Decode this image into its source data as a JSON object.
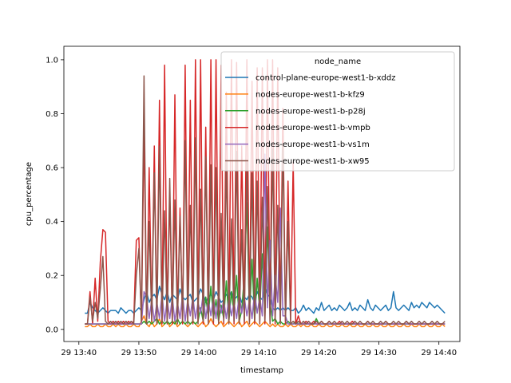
{
  "chart_data": {
    "type": "line",
    "xlabel": "timestamp",
    "ylabel": "cpu_percentage",
    "legend_title": "node_name",
    "legend_position": "top-right",
    "grid": false,
    "x_domain": [
      "29 13:41",
      "29 14:41"
    ],
    "xlim": [
      "29 13:37:30",
      "29 14:43:30"
    ],
    "ylim": [
      -0.045,
      1.05
    ],
    "x_ticks": [
      "29 13:40",
      "29 13:50",
      "29 14:00",
      "29 14:10",
      "29 14:20",
      "29 14:30",
      "29 14:40"
    ],
    "y_ticks": [
      0.0,
      0.2,
      0.4,
      0.6,
      0.8,
      1.0
    ],
    "y_tick_labels": [
      "0.0",
      "0.2",
      "0.4",
      "0.6",
      "0.8",
      "1.0"
    ],
    "series": [
      {
        "name": "control-plane-europe-west1-b-xddz",
        "color": "#1f77b4",
        "y": [
          0.06,
          0.06,
          0.1,
          0.08,
          0.07,
          0.06,
          0.07,
          0.08,
          0.07,
          0.06,
          0.07,
          0.07,
          0.07,
          0.06,
          0.08,
          0.07,
          0.06,
          0.07,
          0.07,
          0.06,
          0.07,
          0.08,
          0.07,
          0.11,
          0.14,
          0.1,
          0.12,
          0.13,
          0.11,
          0.16,
          0.13,
          0.11,
          0.14,
          0.1,
          0.13,
          0.12,
          0.11,
          0.15,
          0.12,
          0.11,
          0.12,
          0.13,
          0.1,
          0.11,
          0.12,
          0.15,
          0.13,
          0.1,
          0.12,
          0.13,
          0.11,
          0.14,
          0.12,
          0.1,
          0.11,
          0.13,
          0.12,
          0.14,
          0.11,
          0.12,
          0.13,
          0.1,
          0.12,
          0.11,
          0.13,
          0.12,
          0.1,
          0.14,
          0.12,
          0.11,
          0.16,
          0.13,
          0.12,
          0.08,
          0.07,
          0.08,
          0.07,
          0.08,
          0.07,
          0.08,
          0.07,
          0.07,
          0.08,
          0.06,
          0.07,
          0.09,
          0.07,
          0.08,
          0.07,
          0.06,
          0.08,
          0.07,
          0.1,
          0.07,
          0.08,
          0.09,
          0.07,
          0.08,
          0.07,
          0.09,
          0.08,
          0.07,
          0.08,
          0.1,
          0.07,
          0.08,
          0.07,
          0.09,
          0.08,
          0.07,
          0.11,
          0.08,
          0.07,
          0.09,
          0.08,
          0.07,
          0.08,
          0.09,
          0.07,
          0.08,
          0.14,
          0.08,
          0.07,
          0.08,
          0.09,
          0.08,
          0.07,
          0.1,
          0.08,
          0.09,
          0.08,
          0.1,
          0.09,
          0.08,
          0.1,
          0.09,
          0.08,
          0.09,
          0.08,
          0.07,
          0.06
        ]
      },
      {
        "name": "nodes-europe-west1-b-kfz9",
        "color": "#ff7f0e",
        "y": [
          0.01,
          0.01,
          0.02,
          0.01,
          0.01,
          0.02,
          0.01,
          0.01,
          0.02,
          0.01,
          0.01,
          0.02,
          0.01,
          0.02,
          0.01,
          0.01,
          0.02,
          0.01,
          0.01,
          0.02,
          0.01,
          0.01,
          0.03,
          0.05,
          0.02,
          0.01,
          0.03,
          0.01,
          0.02,
          0.04,
          0.01,
          0.02,
          0.03,
          0.01,
          0.02,
          0.03,
          0.01,
          0.02,
          0.03,
          0.02,
          0.01,
          0.02,
          0.03,
          0.02,
          0.01,
          0.02,
          0.03,
          0.01,
          0.02,
          0.04,
          0.02,
          0.01,
          0.02,
          0.03,
          0.01,
          0.02,
          0.03,
          0.02,
          0.01,
          0.02,
          0.03,
          0.01,
          0.02,
          0.03,
          0.01,
          0.02,
          0.03,
          0.02,
          0.01,
          0.02,
          0.03,
          0.02,
          0.01,
          0.02,
          0.01,
          0.02,
          0.01,
          0.01,
          0.02,
          0.01,
          0.02,
          0.01,
          0.01,
          0.02,
          0.01,
          0.02,
          0.01,
          0.01,
          0.02,
          0.01,
          0.01,
          0.02,
          0.01,
          0.01,
          0.02,
          0.01,
          0.01,
          0.02,
          0.01,
          0.01,
          0.02,
          0.01,
          0.01,
          0.02,
          0.01,
          0.01,
          0.02,
          0.01,
          0.01,
          0.02,
          0.01,
          0.01,
          0.02,
          0.01,
          0.01,
          0.02,
          0.01,
          0.01,
          0.02,
          0.01,
          0.01,
          0.02,
          0.01,
          0.01,
          0.02,
          0.01,
          0.01,
          0.02,
          0.01,
          0.01,
          0.02,
          0.01,
          0.01,
          0.02,
          0.01,
          0.01,
          0.02,
          0.01,
          0.01,
          0.02,
          0.01
        ]
      },
      {
        "name": "nodes-europe-west1-b-p28j",
        "color": "#2ca02c",
        "y": [
          0.02,
          0.02,
          0.02,
          0.02,
          0.02,
          0.02,
          0.02,
          0.02,
          0.02,
          0.02,
          0.02,
          0.02,
          0.02,
          0.02,
          0.02,
          0.02,
          0.02,
          0.02,
          0.02,
          0.02,
          0.02,
          0.02,
          0.02,
          0.03,
          0.02,
          0.03,
          0.02,
          0.03,
          0.04,
          0.02,
          0.03,
          0.02,
          0.03,
          0.02,
          0.03,
          0.02,
          0.04,
          0.02,
          0.03,
          0.02,
          0.03,
          0.02,
          0.03,
          0.02,
          0.03,
          0.08,
          0.03,
          0.12,
          0.05,
          0.16,
          0.04,
          0.11,
          0.03,
          0.09,
          0.04,
          0.18,
          0.03,
          0.14,
          0.06,
          0.2,
          0.03,
          0.07,
          0.2,
          0.47,
          0.05,
          0.26,
          0.03,
          0.19,
          0.07,
          0.28,
          0.05,
          0.38,
          0.1,
          0.03,
          0.04,
          0.02,
          0.03,
          0.02,
          0.02,
          0.03,
          0.02,
          0.02,
          0.03,
          0.02,
          0.02,
          0.02,
          0.02,
          0.02,
          0.02,
          0.02,
          0.04,
          0.02,
          0.02,
          0.02,
          0.02,
          0.02,
          0.02,
          0.02,
          0.02,
          0.02,
          0.02,
          0.02,
          0.02,
          0.02,
          0.02,
          0.02,
          0.02,
          0.02,
          0.02,
          0.02,
          0.02,
          0.02,
          0.02,
          0.02,
          0.02,
          0.02,
          0.02,
          0.02,
          0.02,
          0.02,
          0.02,
          0.02,
          0.02,
          0.02,
          0.02,
          0.02,
          0.02,
          0.02,
          0.02,
          0.02,
          0.02,
          0.02,
          0.02,
          0.02,
          0.02,
          0.02,
          0.02,
          0.02,
          0.02,
          0.02,
          0.02
        ]
      },
      {
        "name": "nodes-europe-west1-b-vmpb",
        "color": "#d62728",
        "y": [
          0.02,
          0.02,
          0.14,
          0.02,
          0.19,
          0.03,
          0.25,
          0.37,
          0.36,
          0.03,
          0.02,
          0.03,
          0.02,
          0.03,
          0.02,
          0.03,
          0.02,
          0.03,
          0.02,
          0.03,
          0.33,
          0.34,
          0.02,
          0.75,
          0.02,
          0.6,
          0.03,
          0.68,
          0.02,
          0.85,
          0.02,
          0.98,
          0.03,
          0.5,
          0.02,
          0.87,
          0.03,
          0.45,
          0.02,
          0.98,
          0.03,
          0.85,
          0.02,
          1.0,
          0.03,
          1.0,
          0.02,
          0.75,
          0.03,
          1.0,
          0.02,
          1.0,
          0.03,
          0.98,
          0.02,
          0.88,
          0.03,
          1.0,
          0.02,
          0.99,
          0.03,
          0.68,
          0.02,
          1.0,
          0.03,
          0.92,
          0.02,
          0.97,
          0.03,
          0.97,
          0.02,
          1.0,
          0.03,
          1.0,
          0.02,
          0.97,
          0.03,
          0.82,
          0.02,
          0.55,
          0.03,
          0.62,
          0.02,
          0.05,
          0.02,
          0.02,
          0.03,
          0.02,
          0.02,
          0.03,
          0.02,
          0.02,
          0.03,
          0.02,
          0.02,
          0.03,
          0.02,
          0.02,
          0.02,
          0.03,
          0.02,
          0.02,
          0.02,
          0.02,
          0.03,
          0.02,
          0.02,
          0.02,
          0.02,
          0.02,
          0.03,
          0.02,
          0.02,
          0.02,
          0.02,
          0.02,
          0.02,
          0.03,
          0.02,
          0.02,
          0.02,
          0.02,
          0.02,
          0.02,
          0.02,
          0.03,
          0.02,
          0.02,
          0.02,
          0.02,
          0.02,
          0.02,
          0.02,
          0.02,
          0.02,
          0.02,
          0.02,
          0.02,
          0.02,
          0.02,
          0.02
        ]
      },
      {
        "name": "nodes-europe-west1-b-vs1m",
        "color": "#9467bd",
        "y": [
          0.02,
          0.02,
          0.02,
          0.02,
          0.02,
          0.02,
          0.02,
          0.02,
          0.02,
          0.02,
          0.02,
          0.02,
          0.02,
          0.02,
          0.02,
          0.02,
          0.02,
          0.02,
          0.02,
          0.02,
          0.02,
          0.02,
          0.02,
          0.14,
          0.12,
          0.04,
          0.11,
          0.03,
          0.1,
          0.04,
          0.13,
          0.03,
          0.11,
          0.04,
          0.12,
          0.03,
          0.1,
          0.04,
          0.13,
          0.03,
          0.11,
          0.05,
          0.12,
          0.04,
          0.1,
          0.06,
          0.13,
          0.04,
          0.11,
          0.05,
          0.12,
          0.04,
          0.13,
          0.06,
          0.11,
          0.04,
          0.12,
          0.05,
          0.1,
          0.04,
          0.13,
          0.06,
          0.12,
          0.05,
          0.11,
          0.04,
          0.14,
          0.06,
          0.12,
          0.05,
          0.65,
          0.08,
          0.33,
          0.05,
          0.2,
          0.1,
          0.45,
          0.05,
          0.05,
          0.02,
          0.02,
          0.02,
          0.02,
          0.02,
          0.02,
          0.02,
          0.02,
          0.02,
          0.02,
          0.02,
          0.02,
          0.02,
          0.02,
          0.02,
          0.02,
          0.02,
          0.02,
          0.02,
          0.02,
          0.02,
          0.02,
          0.02,
          0.02,
          0.02,
          0.02,
          0.02,
          0.02,
          0.02,
          0.02,
          0.02,
          0.02,
          0.02,
          0.02,
          0.02,
          0.02,
          0.02,
          0.02,
          0.02,
          0.02,
          0.02,
          0.02,
          0.02,
          0.02,
          0.02,
          0.02,
          0.02,
          0.02,
          0.02,
          0.02,
          0.02,
          0.02,
          0.02,
          0.02,
          0.02,
          0.02,
          0.02,
          0.02,
          0.02,
          0.02,
          0.02,
          0.02
        ]
      },
      {
        "name": "nodes-europe-west1-b-xw95",
        "color": "#8c564b",
        "y": [
          0.02,
          0.02,
          0.12,
          0.03,
          0.1,
          0.04,
          0.15,
          0.27,
          0.03,
          0.02,
          0.03,
          0.02,
          0.03,
          0.02,
          0.03,
          0.02,
          0.03,
          0.02,
          0.03,
          0.02,
          0.2,
          0.3,
          0.03,
          0.94,
          0.02,
          0.4,
          0.03,
          0.58,
          0.02,
          0.68,
          0.03,
          0.44,
          0.02,
          0.56,
          0.03,
          0.48,
          0.02,
          0.42,
          0.03,
          0.7,
          0.02,
          0.46,
          0.03,
          0.71,
          0.02,
          0.52,
          0.03,
          0.64,
          0.02,
          0.61,
          0.03,
          0.6,
          0.02,
          0.43,
          0.03,
          0.63,
          0.02,
          0.41,
          0.03,
          0.66,
          0.02,
          0.37,
          0.03,
          0.62,
          0.02,
          0.58,
          0.03,
          0.55,
          0.02,
          0.49,
          0.03,
          0.53,
          0.02,
          0.67,
          0.03,
          0.46,
          0.02,
          0.69,
          0.03,
          0.4,
          0.02,
          0.03,
          0.02,
          0.03,
          0.02,
          0.03,
          0.02,
          0.03,
          0.02,
          0.02,
          0.03,
          0.02,
          0.03,
          0.02,
          0.02,
          0.03,
          0.02,
          0.03,
          0.02,
          0.02,
          0.03,
          0.02,
          0.03,
          0.02,
          0.02,
          0.03,
          0.02,
          0.03,
          0.02,
          0.02,
          0.03,
          0.02,
          0.03,
          0.02,
          0.02,
          0.03,
          0.02,
          0.03,
          0.02,
          0.02,
          0.03,
          0.02,
          0.03,
          0.02,
          0.02,
          0.03,
          0.02,
          0.03,
          0.02,
          0.02,
          0.03,
          0.02,
          0.03,
          0.02,
          0.02,
          0.03,
          0.02,
          0.03,
          0.02,
          0.02,
          0.03
        ]
      }
    ]
  }
}
